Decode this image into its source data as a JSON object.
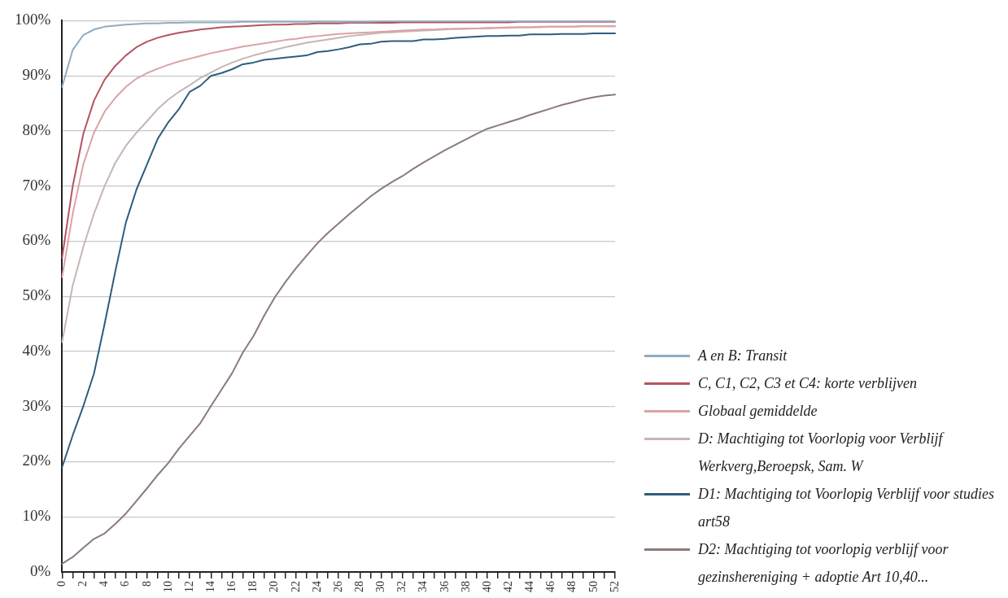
{
  "chart_data": {
    "type": "line",
    "categories": [
      "0",
      null,
      "2",
      null,
      "4",
      null,
      "6",
      null,
      "8",
      null,
      "10",
      null,
      "12",
      null,
      "14",
      null,
      "16",
      null,
      "18",
      null,
      "20",
      null,
      "22",
      null,
      "24",
      null,
      "26",
      null,
      "28",
      null,
      "30",
      null,
      "32",
      null,
      "34",
      null,
      "36",
      null,
      "38",
      null,
      "40",
      null,
      "42",
      null,
      "44",
      null,
      "46",
      null,
      "48",
      null,
      "50",
      null,
      "52"
    ],
    "series": [
      {
        "name": "A en B: Transit",
        "color": "#8eacc4",
        "values": [
          88,
          94.7,
          97.4,
          98.4,
          98.9,
          99.1,
          99.3,
          99.4,
          99.5,
          99.5,
          99.6,
          99.6,
          99.7,
          99.7,
          99.7,
          99.7,
          99.7,
          99.8,
          99.8,
          99.8,
          99.8,
          99.8,
          99.8,
          99.8,
          99.8,
          99.8,
          99.8,
          99.8,
          99.8,
          99.8,
          99.9,
          99.9,
          99.9,
          99.9,
          99.9,
          99.9,
          99.9,
          99.9,
          99.9,
          99.9,
          99.9,
          99.9,
          99.9,
          99.9,
          99.9,
          99.9,
          99.9,
          99.9,
          99.9,
          99.9,
          99.9,
          99.9,
          99.9
        ]
      },
      {
        "name": "C, C1, C2, C3 et C4: korte verblijven",
        "color": "#b5545f",
        "values": [
          57,
          70,
          79.5,
          85.5,
          89.3,
          91.8,
          93.7,
          95.2,
          96.2,
          96.9,
          97.4,
          97.8,
          98.1,
          98.4,
          98.6,
          98.8,
          98.9,
          99.0,
          99.1,
          99.2,
          99.3,
          99.3,
          99.4,
          99.4,
          99.5,
          99.5,
          99.5,
          99.6,
          99.6,
          99.6,
          99.6,
          99.6,
          99.7,
          99.7,
          99.7,
          99.7,
          99.7,
          99.7,
          99.7,
          99.7,
          99.7,
          99.7,
          99.7,
          99.8,
          99.8,
          99.8,
          99.8,
          99.8,
          99.8,
          99.8,
          99.8,
          99.8,
          99.8
        ]
      },
      {
        "name": "Globaal gemiddelde",
        "color": "#dba3a6",
        "values": [
          53.5,
          65,
          74,
          79.7,
          83.5,
          86,
          88,
          89.5,
          90.5,
          91.3,
          92,
          92.6,
          93.1,
          93.6,
          94.1,
          94.5,
          94.9,
          95.3,
          95.6,
          95.9,
          96.2,
          96.5,
          96.7,
          97.0,
          97.2,
          97.4,
          97.6,
          97.7,
          97.8,
          97.9,
          98.0,
          98.1,
          98.2,
          98.3,
          98.4,
          98.4,
          98.5,
          98.5,
          98.6,
          98.6,
          98.7,
          98.7,
          98.8,
          98.8,
          98.8,
          98.9,
          98.9,
          98.9,
          98.9,
          99.0,
          99.0,
          99.0,
          99.0
        ]
      },
      {
        "name": "D: Machtiging tot Voorlopig voor Verblijf Werkverg,Beroepsk, Sam. W",
        "color": "#c5b6b4",
        "values": [
          41.7,
          52,
          59,
          65,
          70,
          74.2,
          77.3,
          79.7,
          81.8,
          84,
          85.7,
          87.1,
          88.3,
          89.6,
          90.6,
          91.6,
          92.4,
          93.1,
          93.7,
          94.2,
          94.7,
          95.2,
          95.6,
          96.0,
          96.3,
          96.6,
          96.9,
          97.2,
          97.4,
          97.6,
          97.8,
          97.9,
          98.0,
          98.1,
          98.2,
          98.3,
          98.4,
          98.5,
          98.5,
          98.6,
          98.6,
          98.7,
          98.7,
          98.8,
          98.8,
          98.8,
          98.9,
          98.9,
          98.9,
          99.0,
          99.0,
          99.0,
          99.0
        ]
      },
      {
        "name": "D1: Machtiging tot Voorlopig Verblijf voor studies art58",
        "color": "#2f5d7c",
        "values": [
          19,
          24.8,
          30.1,
          36,
          45,
          54.5,
          63.4,
          69.4,
          74,
          78.6,
          81.6,
          84,
          87.1,
          88.2,
          90,
          90.5,
          91.2,
          92.1,
          92.4,
          92.9,
          93.1,
          93.3,
          93.5,
          93.7,
          94.3,
          94.5,
          94.8,
          95.2,
          95.7,
          95.8,
          96.2,
          96.3,
          96.3,
          96.3,
          96.6,
          96.6,
          96.7,
          96.9,
          97.0,
          97.1,
          97.2,
          97.2,
          97.3,
          97.3,
          97.5,
          97.5,
          97.5,
          97.6,
          97.6,
          97.6,
          97.7,
          97.7,
          97.7
        ]
      },
      {
        "name": "D2: Machtiging tot voorlopig verblijf voor gezinshereniging + adoptie Art 10,40...",
        "color": "#8c7b78",
        "values": [
          1.5,
          2.7,
          4.4,
          6,
          7,
          8.7,
          10.6,
          12.9,
          15.2,
          17.6,
          19.8,
          22.4,
          24.7,
          27,
          30.1,
          33.1,
          36.1,
          39.8,
          42.8,
          46.5,
          49.8,
          52.6,
          55.1,
          57.4,
          59.6,
          61.5,
          63.2,
          64.9,
          66.5,
          68.1,
          69.5,
          70.7,
          71.8,
          73.1,
          74.3,
          75.4,
          76.5,
          77.5,
          78.5,
          79.5,
          80.4,
          81,
          81.6,
          82.2,
          82.9,
          83.5,
          84.1,
          84.7,
          85.2,
          85.7,
          86.1,
          86.4,
          86.6
        ]
      }
    ],
    "ylim": [
      0,
      100
    ],
    "yticks": [
      {
        "value": 0,
        "label": "0%"
      },
      {
        "value": 10,
        "label": "10%"
      },
      {
        "value": 20,
        "label": "20%"
      },
      {
        "value": 30,
        "label": "30%"
      },
      {
        "value": 40,
        "label": "40%"
      },
      {
        "value": 50,
        "label": "50%"
      },
      {
        "value": 60,
        "label": "60%"
      },
      {
        "value": 70,
        "label": "70%"
      },
      {
        "value": 80,
        "label": "80%"
      },
      {
        "value": 90,
        "label": "90%"
      },
      {
        "value": 100,
        "label": "100%"
      }
    ],
    "grid": "y",
    "legend": "right",
    "marker": "none",
    "line_style": "solid"
  }
}
